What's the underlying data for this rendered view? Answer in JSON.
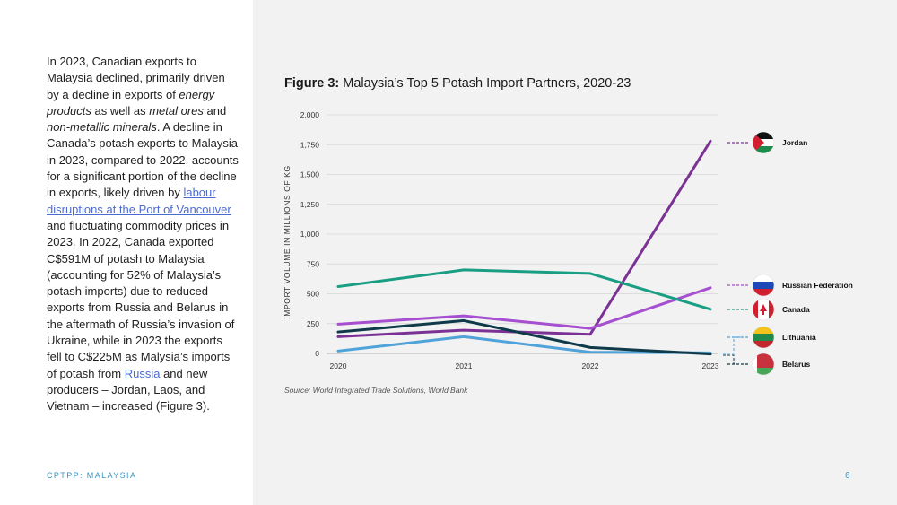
{
  "body_text": {
    "s1": "In 2023, Canadian exports to Malaysia declined, primarily driven by a decline in exports of ",
    "i1": "energy products",
    "s2": " as well as ",
    "i2": "metal ores",
    "s3": " and ",
    "i3": "non-metallic minerals",
    "s4": ". A decline in Canada’s potash exports to Malaysia in 2023, compared to 2022, accounts for a significant portion of the decline in exports, likely driven by ",
    "link1": "labour disruptions at the Port of Vancouver",
    "s5": " and fluctuating commodity prices in 2023. In 2022, Canada exported C$591M of potash to Malaysia (accounting for 52% of Malaysia’s potash imports) due to reduced exports from Russia and Belarus in the aftermath of Russia’s invasion of Ukraine, while in 2023 the exports fell to C$225M as Malysia’s imports of potash from ",
    "link2": "Russia",
    "s6": " and new producers – Jordan, Laos, and Vietnam – increased (Figure 3)."
  },
  "footer": {
    "label": "CPTPP: MALAYSIA",
    "page": "6"
  },
  "figure": {
    "label": "Figure 3:",
    "title": " Malaysia’s Top 5 Potash Import Partners, 2020-23",
    "source": "Source: World Integrated Trade Solutions, World Bank"
  },
  "chart_data": {
    "type": "line",
    "x": [
      "2020",
      "2021",
      "2022",
      "2023"
    ],
    "ylabel": "IMPORT VOLUME IN MILLIONS OF KG",
    "ylim": [
      0,
      2000
    ],
    "yticks": [
      0,
      250,
      500,
      750,
      "1,000",
      "1,250",
      "1,500",
      "1,750",
      "2,000"
    ],
    "ytick_values": [
      0,
      250,
      500,
      750,
      1000,
      1250,
      1500,
      1750,
      2000
    ],
    "grid": true,
    "legend_position": "right",
    "series": [
      {
        "name": "Jordan",
        "color": "#7b3294",
        "values": [
          140,
          195,
          160,
          1780
        ]
      },
      {
        "name": "Russian Federation",
        "color": "#a64fd1",
        "values": [
          245,
          315,
          210,
          550
        ]
      },
      {
        "name": "Canada",
        "color": "#1a9e83",
        "values": [
          560,
          700,
          670,
          370
        ]
      },
      {
        "name": "Lithuania",
        "color": "#4fa3d8",
        "values": [
          20,
          140,
          10,
          5
        ]
      },
      {
        "name": "Belarus",
        "color": "#0f3a4a",
        "values": [
          180,
          275,
          50,
          -5
        ]
      }
    ],
    "legend_flags": [
      "jordan-flag-icon",
      "russia-flag-icon",
      "canada-flag-icon",
      "lithuania-flag-icon",
      "belarus-flag-icon"
    ]
  }
}
